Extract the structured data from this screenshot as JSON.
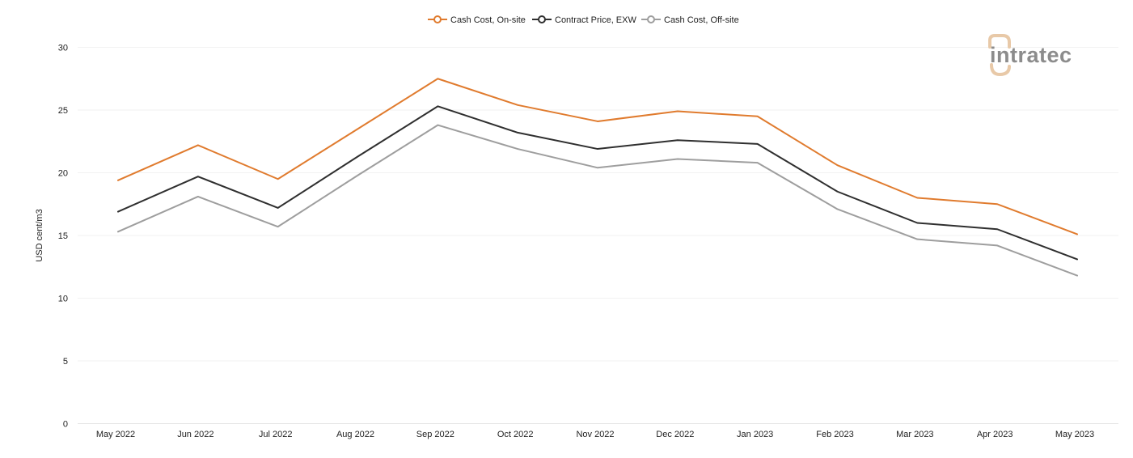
{
  "chart_data": {
    "type": "line",
    "title": "",
    "xlabel": "",
    "ylabel": "USD cent/m3",
    "ylim": [
      0,
      30
    ],
    "yticks": [
      0,
      5,
      10,
      15,
      20,
      25,
      30
    ],
    "grid": true,
    "legend_position": "top-center",
    "categories": [
      "May 2022",
      "Jun 2022",
      "Jul 2022",
      "Aug 2022",
      "Sep 2022",
      "Oct 2022",
      "Nov 2022",
      "Dec 2022",
      "Jan 2023",
      "Feb 2023",
      "Mar 2023",
      "Apr 2023",
      "May 2023"
    ],
    "series": [
      {
        "name": "Cash Cost, On-site",
        "color": "#e07b2e",
        "values": [
          19.4,
          22.2,
          19.5,
          23.5,
          27.5,
          25.4,
          24.1,
          24.9,
          24.5,
          20.6,
          18.0,
          17.5,
          15.1
        ]
      },
      {
        "name": "Contract Price, EXW",
        "color": "#2f2f2f",
        "values": [
          16.9,
          19.7,
          17.2,
          21.3,
          25.3,
          23.2,
          21.9,
          22.6,
          22.3,
          18.5,
          16.0,
          15.5,
          13.1
        ]
      },
      {
        "name": "Cash Cost, Off-site",
        "color": "#9e9e9e",
        "values": [
          15.3,
          18.1,
          15.7,
          19.8,
          23.8,
          21.9,
          20.4,
          21.1,
          20.8,
          17.1,
          14.7,
          14.2,
          11.8
        ]
      }
    ]
  },
  "logo": {
    "text": "intratec",
    "color_text": "#8c8c8c",
    "color_accent": "#e8c9a8"
  }
}
